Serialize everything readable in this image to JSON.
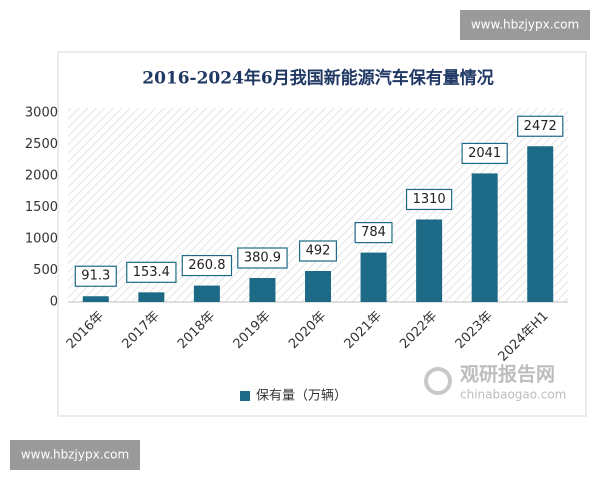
{
  "chart_data": {
    "type": "bar",
    "title": "2016-2024年6月我国新能源汽车保有量情况",
    "categories": [
      "2016年",
      "2017年",
      "2018年",
      "2019年",
      "2020年",
      "2021年",
      "2022年",
      "2023年",
      "2024年H1"
    ],
    "series": [
      {
        "name": "保有量（万辆）",
        "color": "#1d6a87",
        "values": [
          91.3,
          153.4,
          260.8,
          380.9,
          492,
          784,
          1310,
          2041,
          2472
        ]
      }
    ],
    "ylim": [
      0,
      3000
    ],
    "yticks": [
      0,
      500,
      1000,
      1500,
      2000,
      2500,
      3000
    ],
    "grid": false,
    "legend": "bottom"
  },
  "watermarks": {
    "site_top": "www.hbzjypx.com",
    "site_bottom": "www.hbzjypx.com",
    "logo_name": "观研报告网",
    "logo_url": "chinabaogao.com"
  }
}
